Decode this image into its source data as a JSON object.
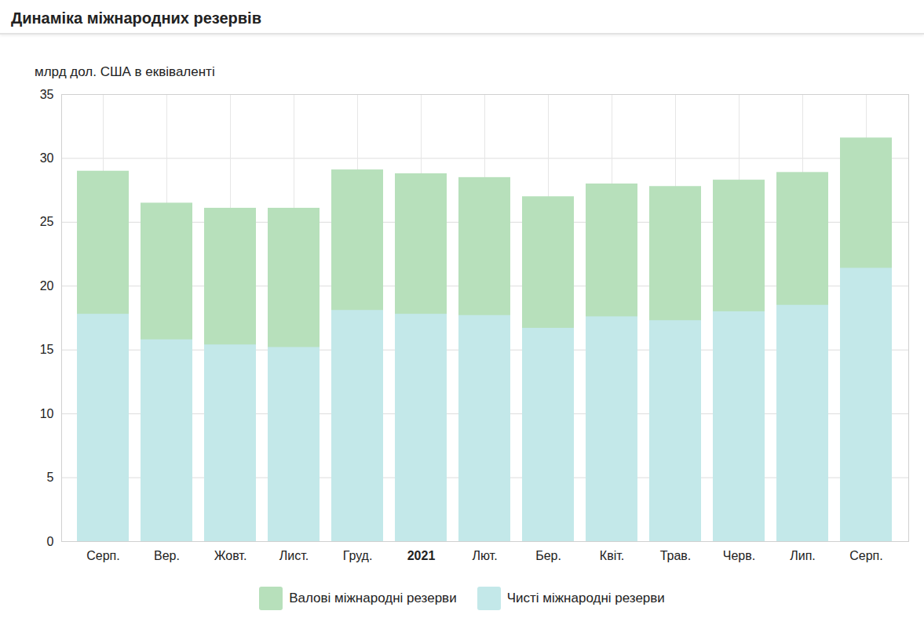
{
  "chart_data": {
    "type": "bar",
    "title": "Динаміка міжнародних резервів",
    "y_label": "млрд дол. США в еквіваленті",
    "categories": [
      "Серп.",
      "Вер.",
      "Жовт.",
      "Лист.",
      "Груд.",
      "2021",
      "Лют.",
      "Бер.",
      "Квіт.",
      "Трав.",
      "Черв.",
      "Лип.",
      "Серп."
    ],
    "series": [
      {
        "name": "Валові міжнародні резерви",
        "color": "#b7e0bb",
        "values": [
          29.0,
          26.5,
          26.1,
          26.1,
          29.1,
          28.8,
          28.5,
          27.0,
          28.0,
          27.8,
          28.3,
          28.9,
          31.6
        ]
      },
      {
        "name": "Чисті міжнародні резерви",
        "color": "#c3e8e9",
        "values": [
          17.8,
          15.8,
          15.4,
          15.2,
          18.1,
          17.8,
          17.7,
          16.7,
          17.6,
          17.3,
          18.0,
          18.5,
          21.4
        ]
      }
    ],
    "stacked": false,
    "ylim": [
      0,
      35
    ],
    "yticks": [
      0,
      5,
      10,
      15,
      20,
      25,
      30,
      35
    ],
    "grid": true,
    "legend": "bottom"
  }
}
